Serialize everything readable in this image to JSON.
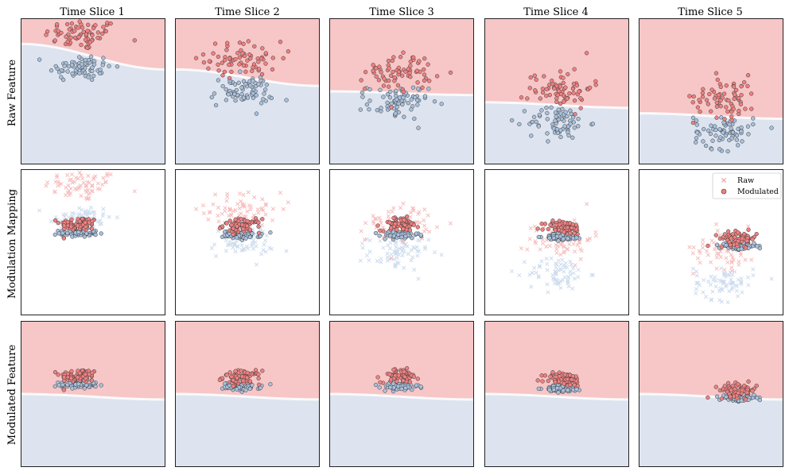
{
  "chart_data": {
    "type": "scatter",
    "title": "",
    "columns": [
      "Time Slice 1",
      "Time Slice 2",
      "Time Slice 3",
      "Time Slice 4",
      "Time Slice 5"
    ],
    "rows": [
      "Raw Feature",
      "Modulation Mapping",
      "Modulated Feature"
    ],
    "legend": {
      "raw": "Raw",
      "modulated": "Modulated",
      "location": "top-right of row 2, column 5"
    },
    "colors": {
      "class_a_point": "#f08080",
      "class_b_point": "#a9c0dc",
      "class_a_region": "#f7c6c7",
      "class_b_region": "#dde4ef",
      "boundary": "#ffffff",
      "point_edge": "#3a3a3a",
      "raw_marker_a": "#f3a0a0",
      "raw_marker_b": "#b8cde6"
    },
    "axes": {
      "xlim": [
        -4,
        4
      ],
      "ylim": [
        -4,
        4
      ],
      "ticks": "none",
      "grid": false
    },
    "points_per_cluster": 70,
    "time_slices": [
      {
        "label": "Time Slice 1",
        "red_center": [
          -0.6,
          3.1
        ],
        "red_spread": [
          1.9,
          0.5
        ],
        "blue_center": [
          -0.7,
          1.3
        ],
        "blue_spread": [
          1.6,
          0.45
        ],
        "boundary_left": 2.6,
        "boundary_right": 1.2,
        "modulated_red_center": [
          -0.8,
          1.0
        ],
        "modulated_blue_center": [
          -0.8,
          0.5
        ]
      },
      {
        "label": "Time Slice 2",
        "red_center": [
          -0.2,
          1.8
        ],
        "red_spread": [
          1.9,
          0.55
        ],
        "blue_center": [
          -0.3,
          0.0
        ],
        "blue_spread": [
          1.6,
          0.5
        ],
        "boundary_left": 1.2,
        "boundary_right": 0.3,
        "modulated_red_center": [
          -0.3,
          0.9
        ],
        "modulated_blue_center": [
          -0.3,
          0.4
        ]
      },
      {
        "label": "Time Slice 3",
        "red_center": [
          -0.1,
          1.1
        ],
        "red_spread": [
          1.7,
          0.6
        ],
        "blue_center": [
          -0.2,
          -0.6
        ],
        "blue_spread": [
          1.5,
          0.55
        ],
        "boundary_left": 0.0,
        "boundary_right": -0.2,
        "modulated_red_center": [
          -0.1,
          1.0
        ],
        "modulated_blue_center": [
          -0.1,
          0.4
        ]
      },
      {
        "label": "Time Slice 4",
        "red_center": [
          0.2,
          0.2
        ],
        "red_spread": [
          1.6,
          0.65
        ],
        "blue_center": [
          0.1,
          -1.7
        ],
        "blue_spread": [
          1.5,
          0.55
        ],
        "boundary_left": -0.6,
        "boundary_right": -0.9,
        "modulated_red_center": [
          0.4,
          0.8
        ],
        "modulated_blue_center": [
          0.4,
          0.3
        ]
      },
      {
        "label": "Time Slice 5",
        "red_center": [
          0.8,
          -0.3
        ],
        "red_spread": [
          1.6,
          0.7
        ],
        "blue_center": [
          0.7,
          -2.2
        ],
        "blue_spread": [
          1.5,
          0.55
        ],
        "boundary_left": -1.2,
        "boundary_right": -1.5,
        "modulated_red_center": [
          1.5,
          0.2
        ],
        "modulated_blue_center": [
          1.5,
          -0.2
        ]
      }
    ],
    "modulated_boundary": {
      "left": 0.0,
      "right": -0.3
    }
  }
}
